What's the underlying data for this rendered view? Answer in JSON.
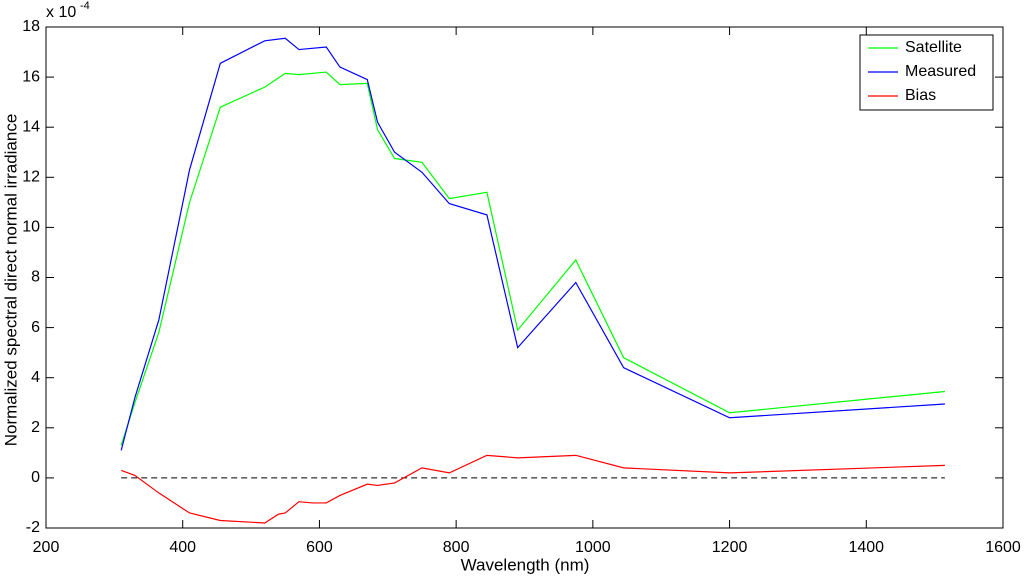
{
  "chart_data": {
    "type": "line",
    "x_label": "Wavelength (nm)",
    "y_label": "Normalized spectral direct normal irradiance",
    "y_multiplier": "x 10",
    "y_multiplier_exp": "-4",
    "xlim": [
      200,
      1600
    ],
    "xticks": [
      200,
      400,
      600,
      800,
      1000,
      1200,
      1400,
      1600
    ],
    "ylim": [
      -2,
      18
    ],
    "yticks": [
      -2,
      0,
      2,
      4,
      6,
      8,
      10,
      12,
      14,
      16,
      18
    ],
    "zero_line": {
      "y": 0,
      "x": [
        310,
        1515
      ],
      "color": "#000000"
    },
    "legend": "upper right",
    "series": [
      {
        "name": "Satellite",
        "color": "#00ff00",
        "x": [
          310,
          330,
          365,
          410,
          455,
          520,
          550,
          570,
          610,
          630,
          670,
          685,
          710,
          750,
          790,
          845,
          890,
          975,
          1045,
          1200,
          1515
        ],
        "values": [
          1.3,
          3.0,
          5.8,
          11.0,
          14.8,
          15.6,
          16.15,
          16.1,
          16.2,
          15.7,
          15.75,
          13.9,
          12.75,
          12.6,
          11.15,
          11.4,
          5.9,
          8.7,
          4.8,
          2.6,
          3.45
        ]
      },
      {
        "name": "Measured",
        "color": "#0000ff",
        "x": [
          310,
          330,
          365,
          410,
          455,
          520,
          550,
          570,
          610,
          630,
          670,
          685,
          710,
          750,
          790,
          845,
          890,
          975,
          1045,
          1200,
          1515
        ],
        "values": [
          1.1,
          3.2,
          6.3,
          12.3,
          16.55,
          17.45,
          17.55,
          17.1,
          17.2,
          16.4,
          15.9,
          14.2,
          13.0,
          12.2,
          10.95,
          10.5,
          5.2,
          7.8,
          4.4,
          2.4,
          2.95
        ]
      },
      {
        "name": "Bias",
        "color": "#ff0000",
        "x": [
          310,
          330,
          365,
          410,
          455,
          520,
          540,
          550,
          570,
          590,
          610,
          630,
          670,
          685,
          710,
          750,
          790,
          845,
          890,
          975,
          1045,
          1200,
          1515
        ],
        "values": [
          0.3,
          0.1,
          -0.6,
          -1.4,
          -1.7,
          -1.8,
          -1.45,
          -1.4,
          -0.95,
          -1.0,
          -1.0,
          -0.7,
          -0.25,
          -0.3,
          -0.2,
          0.4,
          0.2,
          0.9,
          0.8,
          0.9,
          0.4,
          0.2,
          0.5
        ]
      }
    ]
  }
}
